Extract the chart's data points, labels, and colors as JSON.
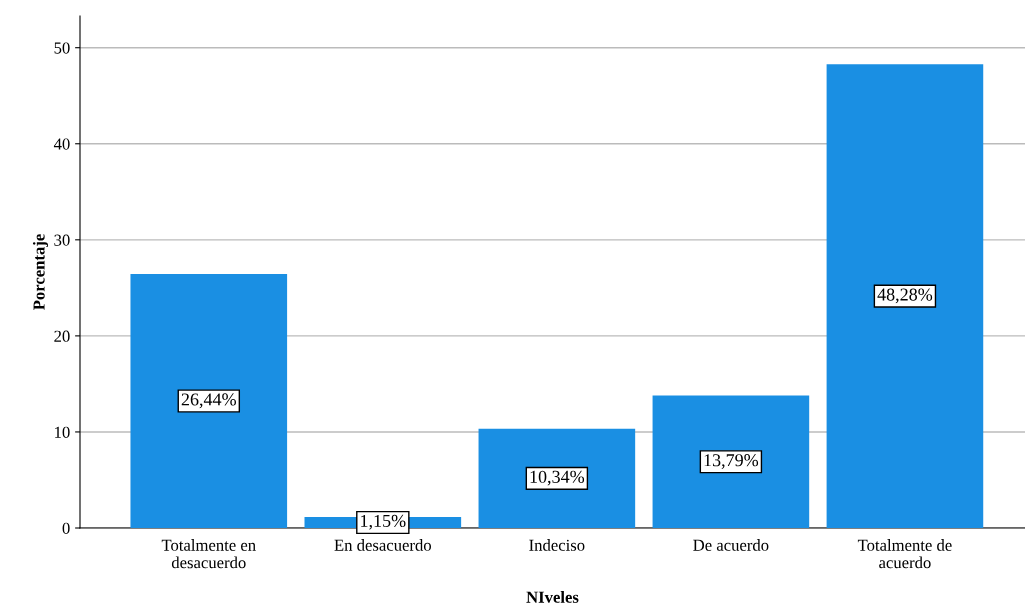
{
  "chart_data": {
    "type": "bar",
    "xlabel": "NIveles",
    "ylabel": "Porcentaje",
    "categories": [
      "Totalmente en\ndesacuerdo",
      "En desacuerdo",
      "Indeciso",
      "De acuerdo",
      "Totalmente de\nacuerdo"
    ],
    "values": [
      26.44,
      1.15,
      10.34,
      13.79,
      48.28
    ],
    "value_labels": [
      "26,44%",
      "1,15%",
      "10,34%",
      "13,79%",
      "48,28%"
    ],
    "color": "#1a8fe3",
    "ylim": [
      0,
      53.3
    ],
    "yticks": [
      0,
      10,
      20,
      30,
      40,
      50
    ],
    "grid": "y"
  }
}
